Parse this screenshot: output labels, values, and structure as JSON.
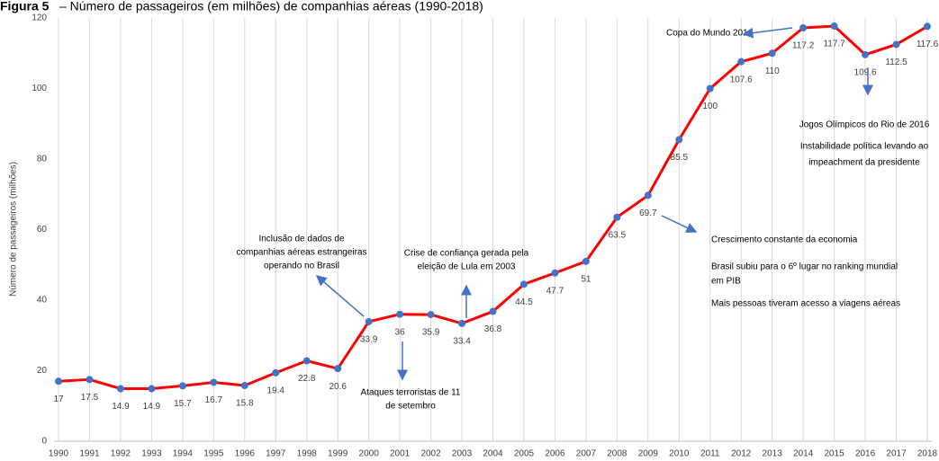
{
  "chart_data": {
    "type": "line",
    "figure_label": "Figura 5",
    "title": "– Número de passageiros (em milhões) de companhias aéreas (1990-2018)",
    "y_label": "Número de passageiros (milhões)",
    "categories": [
      "1990",
      "1991",
      "1992",
      "1993",
      "1994",
      "1995",
      "1996",
      "1997",
      "1998",
      "1999",
      "2000",
      "2001",
      "2002",
      "2003",
      "2004",
      "2005",
      "2006",
      "2007",
      "2008",
      "2009",
      "2010",
      "2011",
      "2012",
      "2013",
      "2014",
      "2015",
      "2016",
      "2017",
      "2018"
    ],
    "values": [
      17,
      17.5,
      14.9,
      14.9,
      15.7,
      16.7,
      15.8,
      19.4,
      22.8,
      20.6,
      33.9,
      36,
      35.9,
      33.4,
      36.8,
      44.5,
      47.7,
      51,
      63.5,
      69.7,
      85.5,
      100,
      107.6,
      110,
      117.2,
      117.7,
      109.6,
      112.5,
      117.6
    ],
    "color": "#ff0000",
    "marker_color": "#4472c4",
    "ylim": [
      0,
      120
    ],
    "yticks": [
      0,
      20,
      40,
      60,
      80,
      100,
      120
    ],
    "grid": "x",
    "annotations": [
      {
        "lines": [
          "Copa do Mundo 2014"
        ]
      },
      {
        "lines": [
          "Jogos Olímpicos do Rio de 2016",
          "Instabilidade política levando ao",
          "impeachment da presidente"
        ]
      },
      {
        "lines": [
          "Crescimento constante da economia",
          "Brasil subiu para o 6º lugar no ranking mundial",
          "em PIB",
          "Mais pessoas tiveram acesso a viagens aéreas"
        ]
      },
      {
        "lines": [
          "Inclusão de dados de",
          "companhias aéreas estrangeiras",
          "operando no Brasil"
        ]
      },
      {
        "lines": [
          "Crise de confiança gerada pela",
          "eleição de Lula em 2003"
        ]
      },
      {
        "lines": [
          "Ataques terroristas de 11",
          "de setembro"
        ]
      }
    ]
  }
}
